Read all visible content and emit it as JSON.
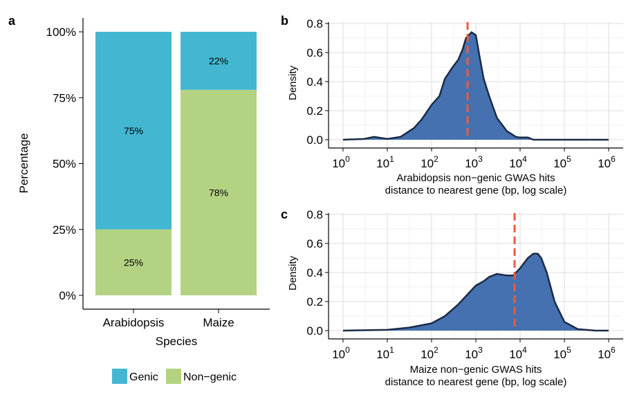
{
  "chart_data": [
    {
      "panel": "a",
      "type": "bar",
      "stacked": true,
      "categories": [
        "Arabidopsis",
        "Maize"
      ],
      "series": [
        {
          "name": "Non−genic",
          "values": [
            25,
            78
          ],
          "labels": [
            "25%",
            "78%"
          ],
          "color": "#b3d383"
        },
        {
          "name": "Genic",
          "values": [
            75,
            22
          ],
          "labels": [
            "75%",
            "22%"
          ],
          "color": "#43b7d1"
        }
      ],
      "xlabel": "Species",
      "ylabel": "Percentage",
      "ylim": [
        0,
        100
      ],
      "yticks": [
        0,
        25,
        50,
        75,
        100
      ],
      "ytick_labels": [
        "0%",
        "25%",
        "50%",
        "75%",
        "100%"
      ],
      "legend": {
        "placement": "bottom",
        "entries": [
          {
            "label": "Genic",
            "color": "#43b7d1"
          },
          {
            "label": "Non−genic",
            "color": "#b3d383"
          }
        ]
      }
    },
    {
      "panel": "b",
      "type": "area",
      "xscale": "log",
      "xlim": [
        1,
        1000000
      ],
      "xticks": [
        1,
        10,
        100,
        1000,
        10000,
        100000,
        1000000
      ],
      "ylim": [
        0,
        0.8
      ],
      "yticks": [
        0.0,
        0.2,
        0.4,
        0.6,
        0.8
      ],
      "ytick_labels": [
        "0.0",
        "0.2",
        "0.4",
        "0.6",
        "0.8"
      ],
      "ylabel": "Density",
      "xlabel_lines": [
        "Arabidopsis non−genic GWAS hits",
        "distance to nearest gene (bp, log scale)"
      ],
      "fill": "#4571b0",
      "stroke": "#1b2b45",
      "vline": {
        "x": 650,
        "color": "#f05a3c",
        "style": "dashed"
      },
      "x": [
        1,
        3,
        5,
        10,
        20,
        40,
        60,
        100,
        150,
        200,
        300,
        400,
        500,
        600,
        800,
        1000,
        1200,
        1500,
        2000,
        3000,
        5000,
        8000,
        10000,
        15000,
        20000,
        30000,
        50000,
        100000,
        1000000
      ],
      "y": [
        0.0,
        0.005,
        0.02,
        0.005,
        0.02,
        0.08,
        0.14,
        0.24,
        0.3,
        0.42,
        0.5,
        0.55,
        0.62,
        0.7,
        0.74,
        0.72,
        0.58,
        0.42,
        0.3,
        0.15,
        0.06,
        0.02,
        0.015,
        0.015,
        0.0,
        0.0,
        0.0,
        0.0,
        0.0
      ]
    },
    {
      "panel": "c",
      "type": "area",
      "xscale": "log",
      "xlim": [
        1,
        1000000
      ],
      "xticks": [
        1,
        10,
        100,
        1000,
        10000,
        100000,
        1000000
      ],
      "ylim": [
        0,
        0.8
      ],
      "yticks": [
        0.0,
        0.2,
        0.4,
        0.6,
        0.8
      ],
      "ytick_labels": [
        "0.0",
        "0.2",
        "0.4",
        "0.6",
        "0.8"
      ],
      "ylabel": "Density",
      "xlabel_lines": [
        "Maize non−genic GWAS hits",
        "distance to nearest gene (bp, log scale)"
      ],
      "fill": "#4571b0",
      "stroke": "#1b2b45",
      "vline": {
        "x": 7500,
        "color": "#f05a3c",
        "style": "dashed"
      },
      "x": [
        1,
        10,
        30,
        100,
        200,
        400,
        700,
        1000,
        1500,
        2000,
        3000,
        5000,
        7000,
        10000,
        15000,
        20000,
        25000,
        30000,
        40000,
        60000,
        100000,
        200000,
        500000,
        1000000
      ],
      "y": [
        0.0,
        0.005,
        0.02,
        0.05,
        0.1,
        0.18,
        0.26,
        0.31,
        0.34,
        0.37,
        0.39,
        0.38,
        0.38,
        0.43,
        0.5,
        0.53,
        0.53,
        0.5,
        0.4,
        0.2,
        0.06,
        0.01,
        0.0,
        0.0
      ]
    }
  ],
  "panel_letters": [
    "a",
    "b",
    "c"
  ]
}
